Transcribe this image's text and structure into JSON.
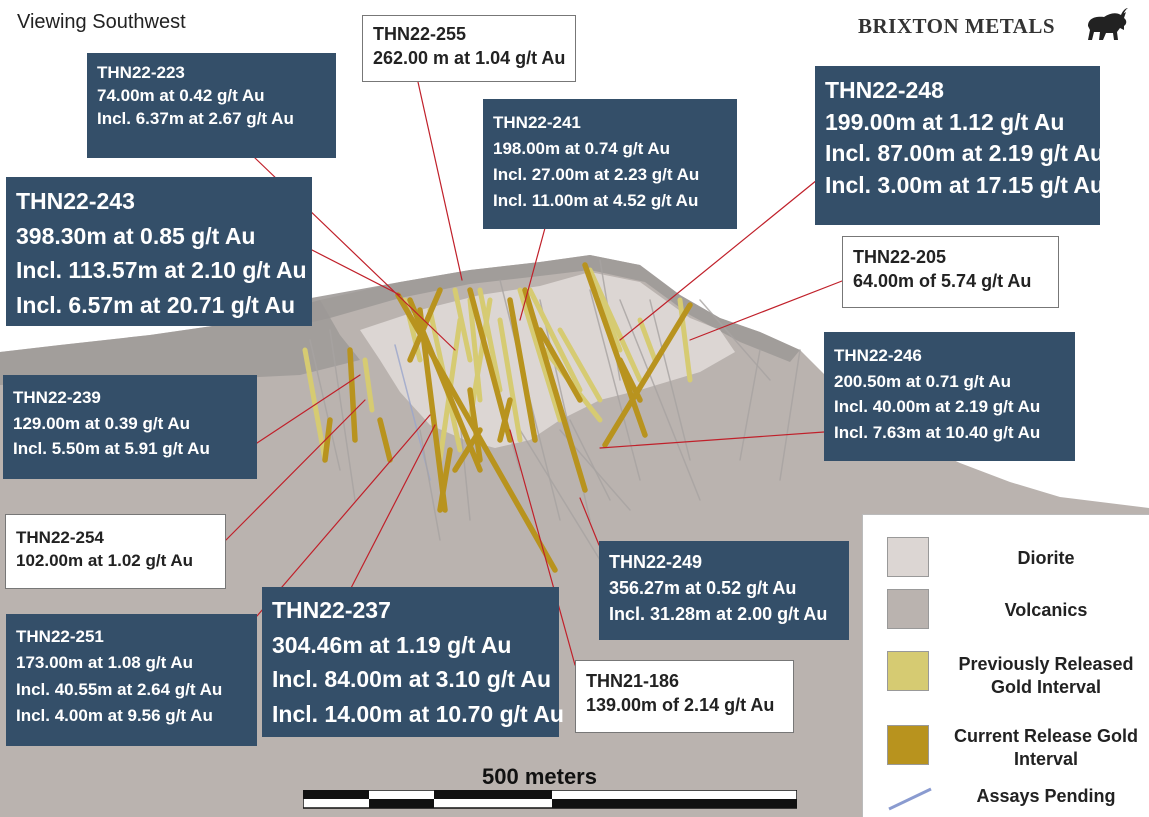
{
  "view_label": "Viewing Southwest",
  "brand": "BRIXTON METALS",
  "scale_label": "500 meters",
  "colors": {
    "callout_dark": "#344f69",
    "diorite": "#dcd6d3",
    "volcanics": "#bab3af",
    "previously_released": "#d6cb72",
    "current_release": "#b8931e",
    "assays_pending": "#8a9bd0",
    "leader_line": "#c0202a"
  },
  "callouts": [
    {
      "id": "THN22-223",
      "lines": [
        "74.00m at 0.42 g/t Au",
        "Incl. 6.37m at 2.67 g/t Au"
      ]
    },
    {
      "id": "THN22-255",
      "lines": [
        "262.00 m at 1.04 g/t Au"
      ]
    },
    {
      "id": "THN22-241",
      "lines": [
        "198.00m at 0.74 g/t Au",
        "Incl. 27.00m at 2.23 g/t Au",
        "Incl. 11.00m at 4.52 g/t Au"
      ]
    },
    {
      "id": "THN22-248",
      "lines": [
        "199.00m at 1.12 g/t Au",
        "Incl. 87.00m at 2.19 g/t Au",
        "Incl. 3.00m at 17.15 g/t Au"
      ]
    },
    {
      "id": "THN22-243",
      "lines": [
        "398.30m at 0.85 g/t Au",
        "Incl. 113.57m at 2.10 g/t Au",
        "Incl. 6.57m at 20.71 g/t Au"
      ]
    },
    {
      "id": "THN22-205",
      "lines": [
        "64.00m of 5.74 g/t Au"
      ]
    },
    {
      "id": "THN22-246",
      "lines": [
        "200.50m at 0.71 g/t Au",
        "Incl. 40.00m at 2.19 g/t Au",
        "Incl. 7.63m at 10.40 g/t Au"
      ]
    },
    {
      "id": "THN22-239",
      "lines": [
        "129.00m at 0.39 g/t Au",
        "Incl. 5.50m at 5.91 g/t Au"
      ]
    },
    {
      "id": "THN22-254",
      "lines": [
        "102.00m at 1.02 g/t Au"
      ]
    },
    {
      "id": "THN22-249",
      "lines": [
        "356.27m at 0.52 g/t Au",
        "Incl. 31.28m at 2.00 g/t Au"
      ]
    },
    {
      "id": "THN22-251",
      "lines": [
        "173.00m at 1.08 g/t Au",
        "Incl. 40.55m at 2.64 g/t Au",
        "Incl. 4.00m at 9.56 g/t Au"
      ]
    },
    {
      "id": "THN22-237",
      "lines": [
        "304.46m at 1.19 g/t Au",
        "Incl. 84.00m at 3.10 g/t Au",
        "Incl. 14.00m at 10.70 g/t Au"
      ]
    },
    {
      "id": "THN21-186",
      "lines": [
        "139.00m of 2.14 g/t Au"
      ]
    }
  ],
  "legend": [
    {
      "label": "Diorite",
      "icon": "diorite-swatch"
    },
    {
      "label": "Volcanics",
      "icon": "volcanics-swatch"
    },
    {
      "label": "Previously Released Gold Interval",
      "icon": "previously-released-swatch"
    },
    {
      "label": "Current Release Gold Interval",
      "icon": "current-release-swatch"
    },
    {
      "label": "Assays Pending",
      "icon": "assays-pending-line"
    }
  ]
}
